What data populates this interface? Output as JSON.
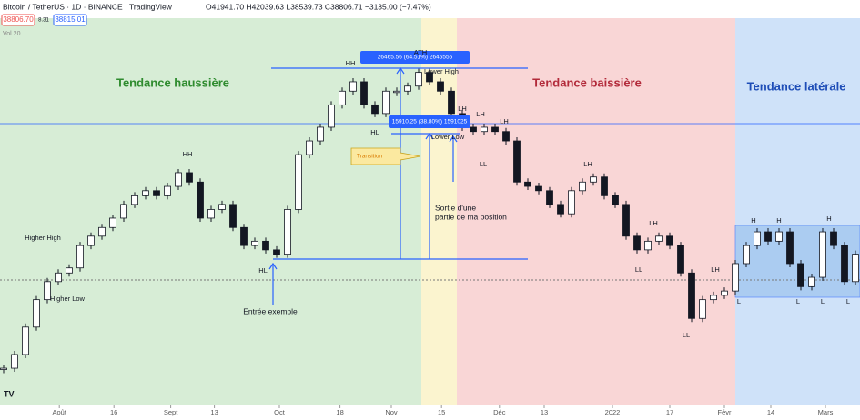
{
  "header": {
    "title": "Bitcoin / TetherUS · 1D · BINANCE · TradingView",
    "ohlc": "O41941.70 H42039.63 L38539.73 C38806.71 −3135.00 (−7.47%)",
    "sell": "38806.70",
    "spread": "8.31",
    "buy": "38815.01",
    "volume": "Vol 20"
  },
  "chart_data": {
    "type": "candlestick",
    "values": [
      25900,
      27800,
      31600,
      35400,
      37900,
      39100,
      39800,
      42900,
      44200,
      45400,
      46700,
      48600,
      49800,
      50500,
      49800,
      51100,
      53000,
      51700,
      46700,
      47900,
      48600,
      45400,
      42900,
      43500,
      42300,
      41700,
      47900,
      55500,
      57400,
      59300,
      62400,
      64300,
      65600,
      62400,
      61200,
      64300,
      64300,
      65000,
      66900,
      65600,
      64300,
      61200,
      59300,
      58700,
      59300,
      58700,
      57400,
      51700,
      51100,
      50500,
      48600,
      47300,
      50500,
      51700,
      52400,
      49800,
      48600,
      44200,
      42300,
      43500,
      44200,
      42900,
      39100,
      32800,
      35400,
      36000,
      36600,
      40400,
      42900,
      44800,
      43500,
      44800,
      40400,
      37200,
      38500,
      44800,
      42900,
      37900,
      41700
    ],
    "color": "#131722",
    "ylim": [
      20865,
      74415
    ],
    "xticks": [
      {
        "value": 5.1,
        "label": "Août"
      },
      {
        "value": 10.1,
        "label": "16"
      },
      {
        "value": 15.3,
        "label": "Sept"
      },
      {
        "value": 19.3,
        "label": "13"
      },
      {
        "value": 25.25,
        "label": "Oct"
      },
      {
        "value": 30.8,
        "label": "18"
      },
      {
        "value": 35.5,
        "label": "Nov"
      },
      {
        "value": 40.1,
        "label": "15"
      },
      {
        "value": 45.4,
        "label": "Déc"
      },
      {
        "value": 49.5,
        "label": "13"
      },
      {
        "value": 55.75,
        "label": "2022"
      },
      {
        "value": 61,
        "label": "17"
      },
      {
        "value": 66,
        "label": "Févr"
      },
      {
        "value": 70.25,
        "label": "14"
      },
      {
        "value": 75.25,
        "label": "Mars"
      }
    ],
    "zones": [
      "Tendance haussière",
      "Tendance baissière",
      "Tendance latérale"
    ],
    "measures": [
      "26465.56 (64.51%) 2646556",
      "15910.25 (38.80%) 1591025"
    ],
    "annotations": [
      "HH",
      "ATH",
      "Lower High",
      "HH",
      "Higher High",
      "Higher Low",
      "HL",
      "HL",
      "LH",
      "LH",
      "LH",
      "Lower Low",
      "LL",
      "LH",
      "LH",
      "LL",
      "LL",
      "LH",
      "L",
      "H",
      "H",
      "H",
      "L",
      "L",
      "L",
      "Sortie d'une",
      "partie de ma position",
      "Entrée exemple",
      "Transition"
    ]
  }
}
